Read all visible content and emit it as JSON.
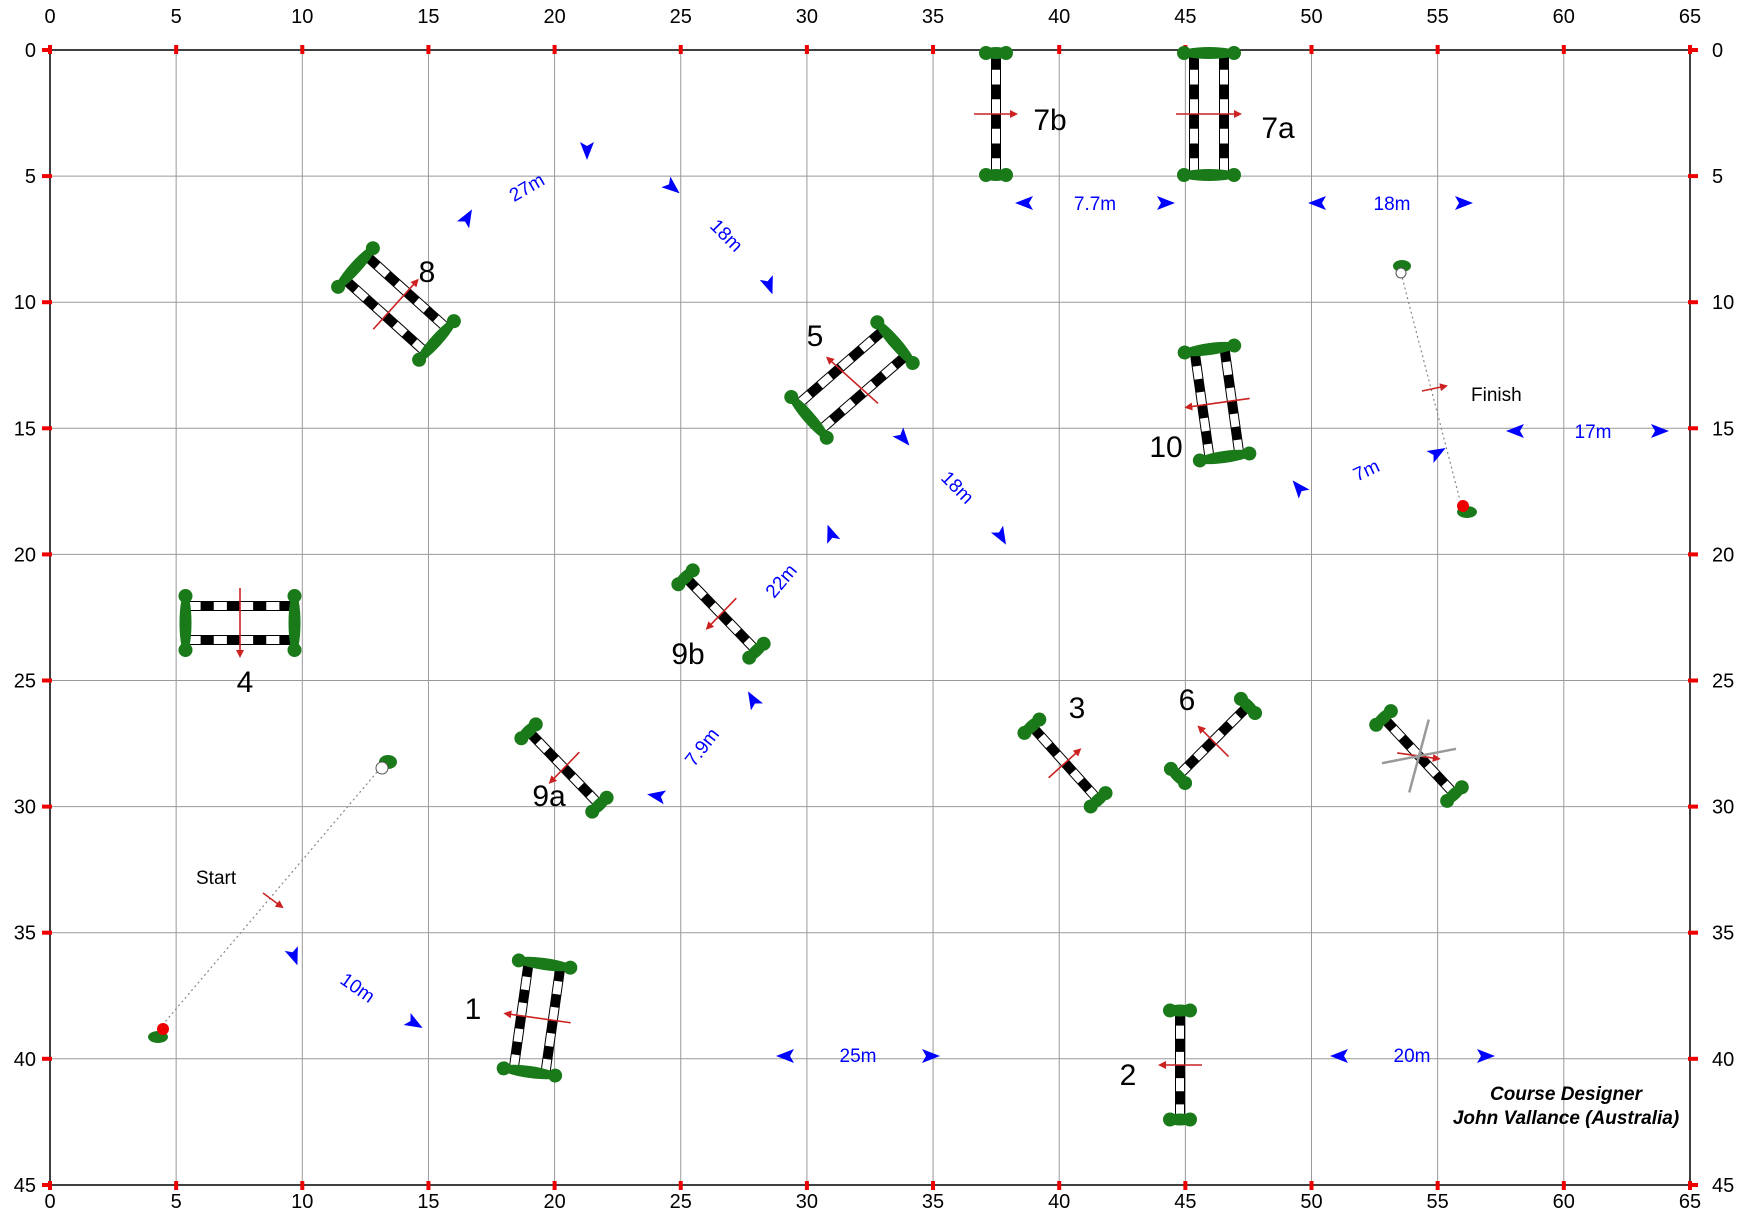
{
  "colors": {
    "grid": "#999999",
    "tick": "#ee0000",
    "foliage": "#1a7a1a",
    "pole_dark": "#000000",
    "pole_light": "#ffffff",
    "direction_arrow": "#cc2222",
    "distance": "#0000ff",
    "text": "#000000"
  },
  "arena": {
    "x_ticks": [
      "0",
      "5",
      "10",
      "15",
      "20",
      "25",
      "30",
      "35",
      "40",
      "45",
      "50",
      "55",
      "60",
      "65"
    ],
    "y_ticks": [
      "0",
      "5",
      "10",
      "15",
      "20",
      "25",
      "30",
      "35",
      "40",
      "45"
    ]
  },
  "fences": [
    {
      "id": "1",
      "label": "1"
    },
    {
      "id": "2",
      "label": "2"
    },
    {
      "id": "3",
      "label": "3"
    },
    {
      "id": "4",
      "label": "4"
    },
    {
      "id": "5",
      "label": "5"
    },
    {
      "id": "6",
      "label": "6"
    },
    {
      "id": "7a",
      "label": "7a"
    },
    {
      "id": "7b",
      "label": "7b"
    },
    {
      "id": "8",
      "label": "8"
    },
    {
      "id": "9a",
      "label": "9a"
    },
    {
      "id": "9b",
      "label": "9b"
    },
    {
      "id": "10",
      "label": "10"
    },
    {
      "id": "spare",
      "label": "",
      "crossed_out": true
    }
  ],
  "distances": [
    "27m",
    "18m",
    "18m",
    "22m",
    "7.9m",
    "10m",
    "25m",
    "20m",
    "7.7m",
    "18m",
    "17m",
    "7m"
  ],
  "start_label": "Start",
  "finish_label": "Finish",
  "designer": {
    "line1": "Course Designer",
    "line2": "John Vallance (Australia)"
  }
}
